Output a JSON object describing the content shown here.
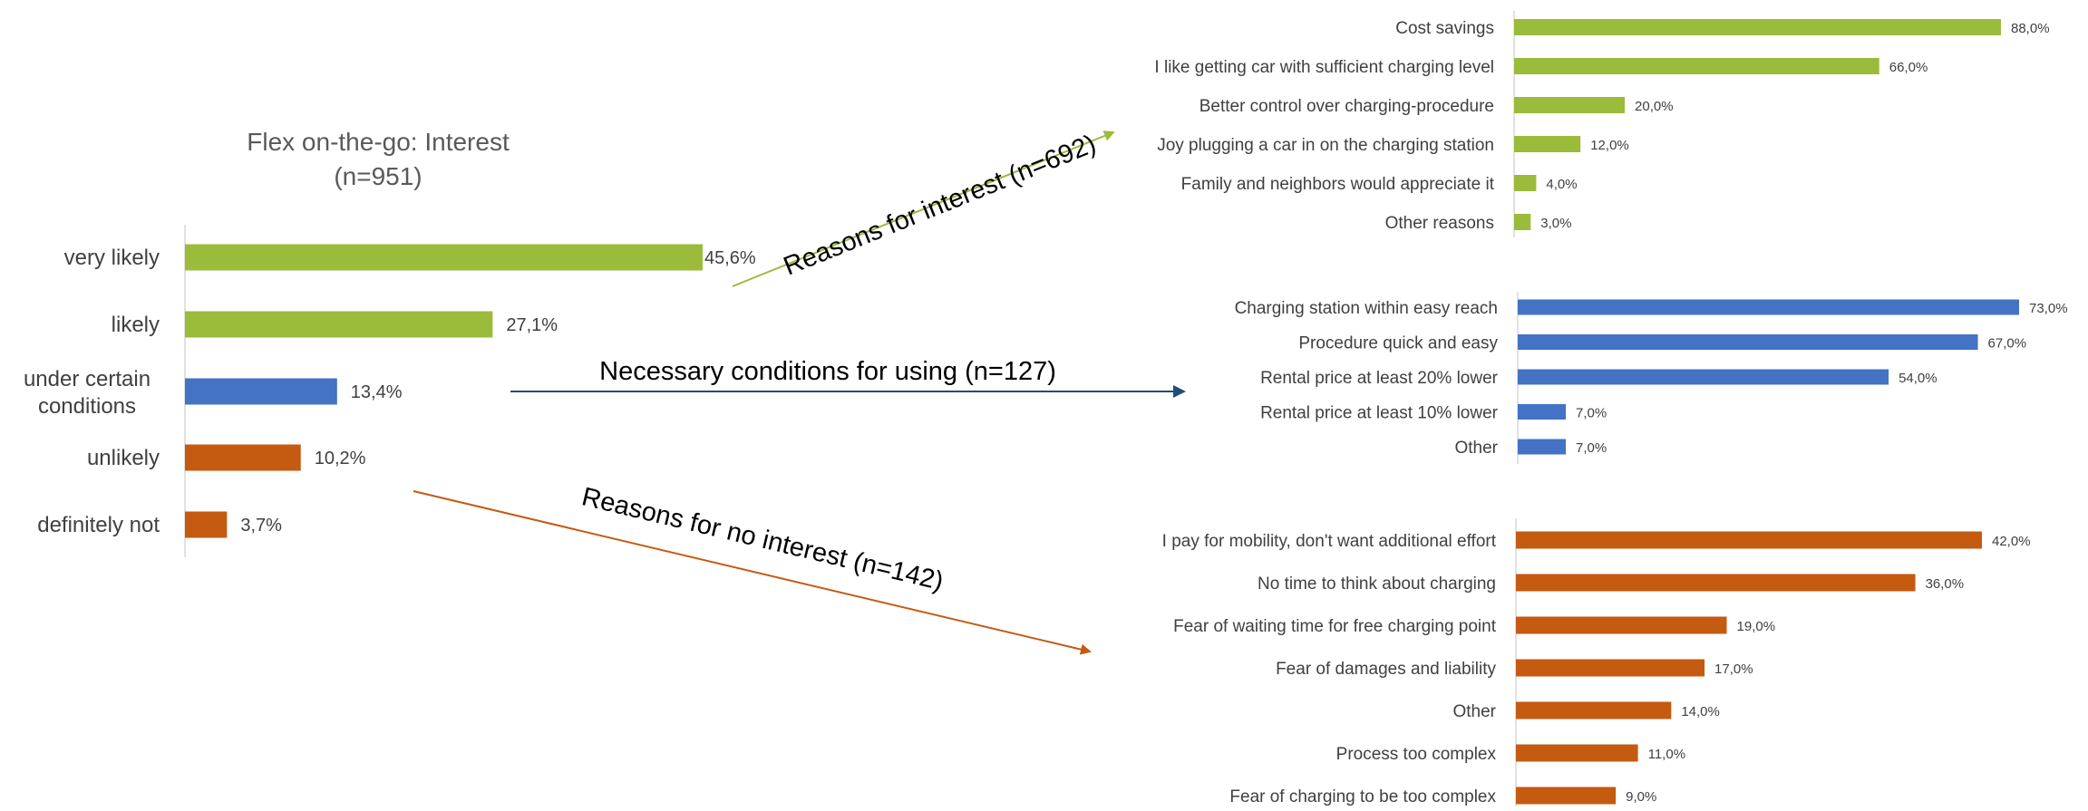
{
  "colors": {
    "green": "#9bbb3b",
    "blue": "#4472c4",
    "orange": "#c55a11",
    "arrow_green": "#9bbb3b",
    "arrow_blue": "#1f4e79",
    "arrow_orange": "#c55a11"
  },
  "arrows": {
    "interest": "Reasons for interest (n=692)",
    "conditions": "Necessary conditions for using (n=127)",
    "no_interest": "Reasons for no interest (n=142)"
  },
  "chart_data": [
    {
      "type": "bar",
      "orientation": "horizontal",
      "title": "Flex on-the-go: Interest\n(n=951)",
      "title_lines": [
        "Flex on-the-go: Interest",
        "(n=951)"
      ],
      "categories": [
        "very likely",
        "likely",
        "under certain conditions",
        "unlikely",
        "definitely not"
      ],
      "category_lines": [
        [
          "very likely"
        ],
        [
          "likely"
        ],
        [
          "under certain",
          "conditions"
        ],
        [
          "unlikely"
        ],
        [
          "definitely not"
        ]
      ],
      "values": [
        45.6,
        27.1,
        13.4,
        10.2,
        3.7
      ],
      "labels": [
        "45,6%",
        "27,1%",
        "13,4%",
        "10,2%",
        "3,7%"
      ],
      "color_keys": [
        "green",
        "green",
        "blue",
        "orange",
        "orange"
      ],
      "xlim": [
        0,
        100
      ]
    },
    {
      "type": "bar",
      "orientation": "horizontal",
      "title": "",
      "categories": [
        "Cost savings",
        "I like getting car with sufficient charging level",
        "Better control over charging-procedure",
        "Joy plugging a car in on the charging station",
        "Family and neighbors would appreciate it",
        "Other reasons"
      ],
      "values": [
        88.0,
        66.0,
        20.0,
        12.0,
        4.0,
        3.0
      ],
      "labels": [
        "88,0%",
        "66,0%",
        "20,0%",
        "12,0%",
        "4,0%",
        "3,0%"
      ],
      "color_key": "green",
      "xlim": [
        0,
        100
      ]
    },
    {
      "type": "bar",
      "orientation": "horizontal",
      "title": "",
      "categories": [
        "Charging station within easy reach",
        "Procedure quick and easy",
        "Rental price at least 20% lower",
        "Rental price at least 10% lower",
        "Other"
      ],
      "values": [
        73.0,
        67.0,
        54.0,
        7.0,
        7.0
      ],
      "labels": [
        "73,0%",
        "67,0%",
        "54,0%",
        "7,0%",
        "7,0%"
      ],
      "color_key": "blue",
      "xlim": [
        0,
        100
      ]
    },
    {
      "type": "bar",
      "orientation": "horizontal",
      "title": "",
      "categories": [
        "I pay for mobility, don't want additional effort",
        "No time to think about charging",
        "Fear of waiting time for free charging point",
        "Fear of damages and liability",
        "Other",
        "Process too complex",
        "Fear of charging to be too complex"
      ],
      "values": [
        42.0,
        36.0,
        19.0,
        17.0,
        14.0,
        11.0,
        9.0
      ],
      "labels": [
        "42,0%",
        "36,0%",
        "19,0%",
        "17,0%",
        "14,0%",
        "11,0%",
        "9,0%"
      ],
      "color_key": "orange",
      "xlim": [
        0,
        100
      ]
    }
  ]
}
